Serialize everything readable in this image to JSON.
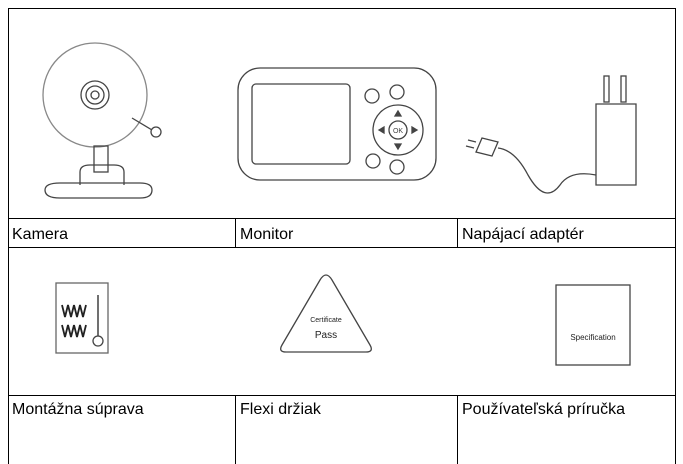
{
  "table": {
    "rows": [
      [
        "Kamera",
        "Monitor",
        "Napájací adaptér"
      ],
      [
        "Montážna súprava",
        "Flexi držiak",
        "Používateľská príručka"
      ]
    ]
  },
  "pictures": {
    "monitor_button": "OK",
    "certificate": [
      "Certificate",
      "Pass"
    ],
    "manual": "Specification"
  }
}
